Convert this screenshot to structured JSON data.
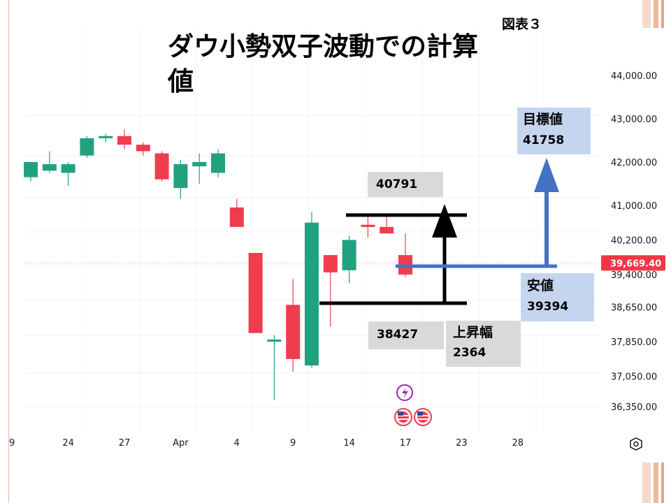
{
  "title": "ダウ小勢双子波動での計算値",
  "figure_label": "図表３",
  "annotations": {
    "top_line_value": "40791",
    "bottom_line_value": "38427",
    "rise_label": "上昇幅",
    "rise_value": "2364",
    "low_label": "安値",
    "low_value": "39394",
    "target_label": "目標値",
    "target_value": "41758"
  },
  "colors": {
    "up": "#22a17f",
    "down": "#ef3d4e",
    "arrow_black": "#000000",
    "arrow_blue": "#4472c4",
    "price_tag": "#f23645"
  },
  "chart_data": {
    "type": "candlestick",
    "y_tick_labels": [
      "44,000.00",
      "43,000.00",
      "42,000.00",
      "41,000.00",
      "40,200.00",
      "39,400.00",
      "38,650.00",
      "37,850.00",
      "37,050.00",
      "36,350.00"
    ],
    "y_ticks": [
      44000,
      43000,
      42000,
      41000,
      40200,
      39400,
      38650,
      37850,
      37050,
      36350
    ],
    "ylim": [
      35700,
      45000
    ],
    "current_price": 39669.4,
    "current_price_label": "39,669.40",
    "x_ticks": [
      {
        "label": "9",
        "i": -1
      },
      {
        "label": "24",
        "i": 2
      },
      {
        "label": "27",
        "i": 5
      },
      {
        "label": "Apr",
        "i": 8
      },
      {
        "label": "4",
        "i": 11
      },
      {
        "label": "9",
        "i": 14
      },
      {
        "label": "14",
        "i": 17
      },
      {
        "label": "17",
        "i": 20
      },
      {
        "label": "23",
        "i": 23
      },
      {
        "label": "28",
        "i": 26
      }
    ],
    "candles": [
      {
        "i": 0,
        "o": 41650,
        "h": 42000,
        "l": 41550,
        "c": 42000
      },
      {
        "i": 1,
        "o": 41800,
        "h": 42250,
        "l": 41750,
        "c": 41950
      },
      {
        "i": 2,
        "o": 41750,
        "h": 42000,
        "l": 41450,
        "c": 41950
      },
      {
        "i": 3,
        "o": 42150,
        "h": 42600,
        "l": 42100,
        "c": 42550
      },
      {
        "i": 4,
        "o": 42550,
        "h": 42650,
        "l": 42450,
        "c": 42600
      },
      {
        "i": 5,
        "o": 42600,
        "h": 42750,
        "l": 42300,
        "c": 42400
      },
      {
        "i": 6,
        "o": 42400,
        "h": 42450,
        "l": 42150,
        "c": 42250
      },
      {
        "i": 7,
        "o": 42200,
        "h": 42250,
        "l": 41550,
        "c": 41600
      },
      {
        "i": 8,
        "o": 41400,
        "h": 42050,
        "l": 41150,
        "c": 41950
      },
      {
        "i": 9,
        "o": 41900,
        "h": 42200,
        "l": 41500,
        "c": 42000
      },
      {
        "i": 10,
        "o": 41750,
        "h": 42300,
        "l": 41650,
        "c": 42200
      },
      {
        "i": 11,
        "o": 40950,
        "h": 41150,
        "l": 40500,
        "c": 40500
      },
      {
        "i": 12,
        "o": 39900,
        "h": 39900,
        "l": 38050,
        "c": 38050
      },
      {
        "i": 13,
        "o": 37850,
        "h": 38000,
        "l": 36500,
        "c": 37900
      },
      {
        "i": 14,
        "o": 38700,
        "h": 39300,
        "l": 37150,
        "c": 37450
      },
      {
        "i": 15,
        "o": 37300,
        "h": 40850,
        "l": 37250,
        "c": 40600
      },
      {
        "i": 16,
        "o": 39850,
        "h": 39850,
        "l": 38200,
        "c": 39450
      },
      {
        "i": 17,
        "o": 39500,
        "h": 40300,
        "l": 39200,
        "c": 40200
      },
      {
        "i": 18,
        "o": 40550,
        "h": 40750,
        "l": 40250,
        "c": 40500
      },
      {
        "i": 19,
        "o": 40500,
        "h": 40800,
        "l": 40350,
        "c": 40350
      },
      {
        "i": 20,
        "o": 39850,
        "h": 40350,
        "l": 39350,
        "c": 39400
      }
    ]
  }
}
